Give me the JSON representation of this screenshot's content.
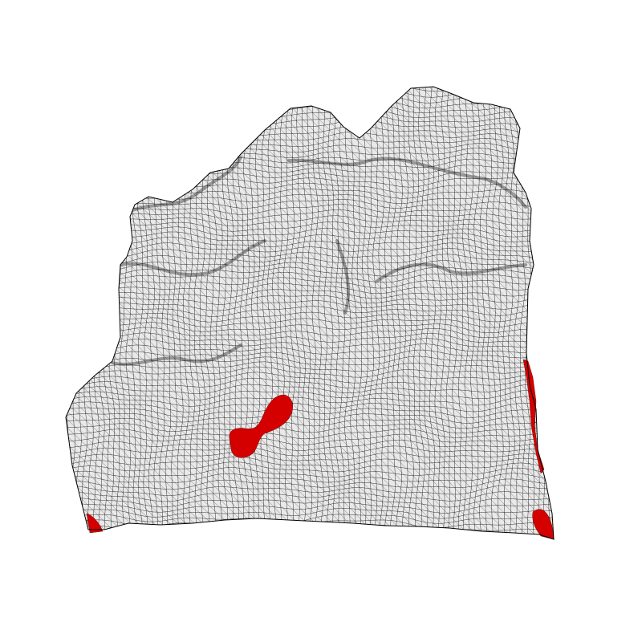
{
  "surface": {
    "fill_color": "#e9e9e9",
    "wire_color": "#000000",
    "highlight_color": "#d40000",
    "highlight_regions": [
      {
        "name": "central-red-blob"
      },
      {
        "name": "right-edge-red-strip"
      },
      {
        "name": "bottom-right-red-corner"
      },
      {
        "name": "bottom-left-red-corner"
      }
    ]
  }
}
